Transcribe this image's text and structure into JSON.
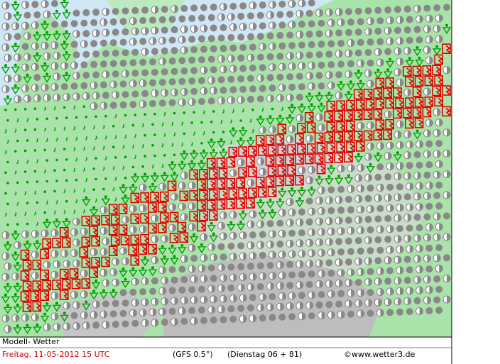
{
  "footer": {
    "model": "Modell- Wetter",
    "date": "Freitag, 11-05-2012  15 UTC",
    "source": "(GFS 0.5°)",
    "run": "(Dienstag 06 + 81)",
    "credit": "©www.wetter3.de"
  }
}
